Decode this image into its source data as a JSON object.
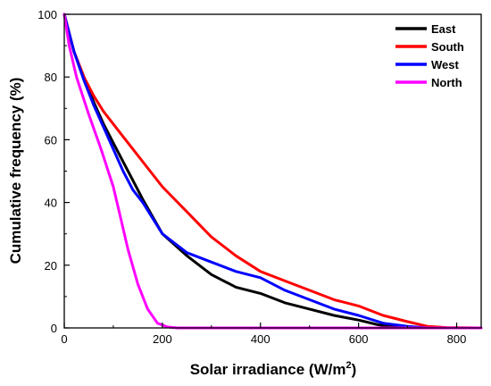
{
  "chart_data": {
    "type": "line",
    "xlabel": "Solar irradiance (W/m",
    "xlabel_sup": "2",
    "xlabel_end": ")",
    "ylabel": "Cumulative frequency (%)",
    "xlim": [
      0,
      850
    ],
    "ylim": [
      0,
      100
    ],
    "x_ticks": [
      0,
      200,
      400,
      600,
      800
    ],
    "y_ticks": [
      0,
      20,
      40,
      60,
      80,
      100
    ],
    "grid": false,
    "legend_position": "top-right",
    "series": [
      {
        "name": "East",
        "color": "#000000",
        "x": [
          0,
          20,
          40,
          60,
          80,
          100,
          120,
          140,
          160,
          200,
          250,
          300,
          350,
          400,
          450,
          500,
          550,
          600,
          640,
          680,
          700
        ],
        "y": [
          100,
          88,
          80,
          72,
          65,
          59,
          53,
          47,
          41,
          30,
          23,
          17,
          13,
          11,
          8,
          6,
          4,
          2.5,
          1,
          0.2,
          0
        ]
      },
      {
        "name": "South",
        "color": "#ff0000",
        "x": [
          0,
          20,
          40,
          60,
          80,
          100,
          120,
          140,
          160,
          200,
          250,
          300,
          350,
          400,
          450,
          500,
          550,
          600,
          650,
          700,
          740,
          780,
          850
        ],
        "y": [
          100,
          88,
          80,
          74,
          69,
          65,
          61,
          57,
          53,
          45,
          37,
          29,
          23,
          18,
          15,
          12,
          9,
          7,
          4,
          2,
          0.5,
          0.1,
          0
        ]
      },
      {
        "name": "West",
        "color": "#0000ff",
        "x": [
          0,
          20,
          40,
          60,
          80,
          100,
          120,
          140,
          160,
          200,
          250,
          300,
          350,
          400,
          450,
          500,
          550,
          600,
          650,
          700,
          740
        ],
        "y": [
          100,
          88,
          79,
          71,
          64,
          57,
          50,
          44,
          40,
          30,
          24,
          21,
          18,
          16,
          12,
          9,
          6,
          4,
          1.5,
          0.5,
          0
        ]
      },
      {
        "name": "North",
        "color": "#ff00ff",
        "x": [
          0,
          10,
          25,
          50,
          75,
          100,
          115,
          130,
          150,
          170,
          190,
          210,
          230,
          300,
          850
        ],
        "y": [
          100,
          90,
          80,
          68,
          57,
          45,
          35,
          25,
          14,
          6,
          1.5,
          0.3,
          0,
          0,
          0
        ]
      }
    ]
  }
}
